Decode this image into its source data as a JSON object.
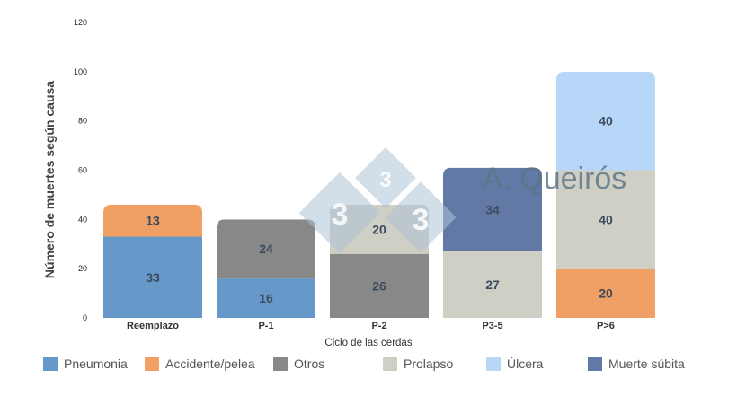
{
  "chart_data": {
    "type": "bar",
    "stacked": true,
    "title": "",
    "xlabel": "Ciclo de las cerdas",
    "ylabel": "Número de muertes según causa",
    "ylim": [
      0,
      120
    ],
    "yticks": [
      0,
      20,
      40,
      60,
      80,
      100,
      120
    ],
    "categories": [
      "Reemplazo",
      "P-1",
      "P-2",
      "P3-5",
      "P>6"
    ],
    "series": [
      {
        "name": "Pneumonia",
        "color": "#6699c9",
        "values": [
          33,
          16,
          0,
          0,
          0
        ]
      },
      {
        "name": "Accidente/pelea",
        "color": "#f0a064",
        "values": [
          13,
          0,
          0,
          0,
          20
        ]
      },
      {
        "name": "Otros",
        "color": "#888888",
        "values": [
          0,
          24,
          26,
          0,
          0
        ]
      },
      {
        "name": "Prolapso",
        "color": "#cfcfc5",
        "values": [
          0,
          0,
          20,
          27,
          40
        ]
      },
      {
        "name": "Úlcera",
        "color": "#b6d7f7",
        "values": [
          0,
          0,
          0,
          0,
          40
        ]
      },
      {
        "name": "Muerte súbita",
        "color": "#6279a6",
        "values": [
          0,
          0,
          0,
          34,
          0
        ]
      }
    ],
    "grid": false,
    "legend_position": "bottom"
  },
  "watermark": {
    "text": "A. Queirós",
    "digits": [
      "3",
      "3",
      "3"
    ],
    "color": "#aec4d6"
  }
}
